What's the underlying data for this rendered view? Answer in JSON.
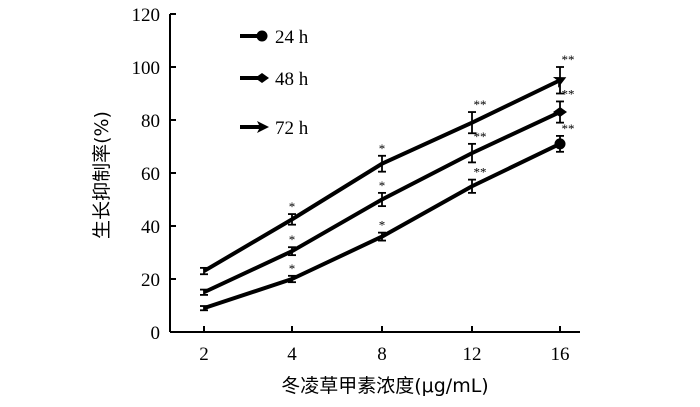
{
  "chart_data": {
    "type": "line",
    "title": "",
    "xlabel": "冬凌草甲素浓度(μg/mL)",
    "ylabel": "生长抑制率(%)",
    "categories": [
      "2",
      "4",
      "8",
      "12",
      "16"
    ],
    "ylim": [
      0,
      120
    ],
    "yticks": [
      "0",
      "20",
      "40",
      "60",
      "80",
      "100",
      "120"
    ],
    "grid": false,
    "legend_position": "top-left",
    "series": [
      {
        "name": "24 h",
        "marker": "circle",
        "values": [
          9,
          20,
          36,
          55,
          71
        ],
        "errors": [
          0.8,
          1.2,
          1.5,
          2.5,
          3.0
        ],
        "significance": [
          "",
          "*",
          "*",
          "**",
          "**"
        ]
      },
      {
        "name": "48 h",
        "marker": "diamond",
        "values": [
          15,
          30.5,
          50,
          67.5,
          83
        ],
        "errors": [
          1.0,
          1.5,
          2.5,
          3.5,
          4.0
        ],
        "significance": [
          "",
          "*",
          "*",
          "**",
          "**"
        ]
      },
      {
        "name": "72 h",
        "marker": "arrow",
        "values": [
          23,
          42.5,
          63.5,
          79,
          95
        ],
        "errors": [
          1.2,
          2.0,
          3.0,
          4.0,
          5.0
        ],
        "significance": [
          "",
          "*",
          "*",
          "**",
          "**"
        ]
      }
    ]
  }
}
